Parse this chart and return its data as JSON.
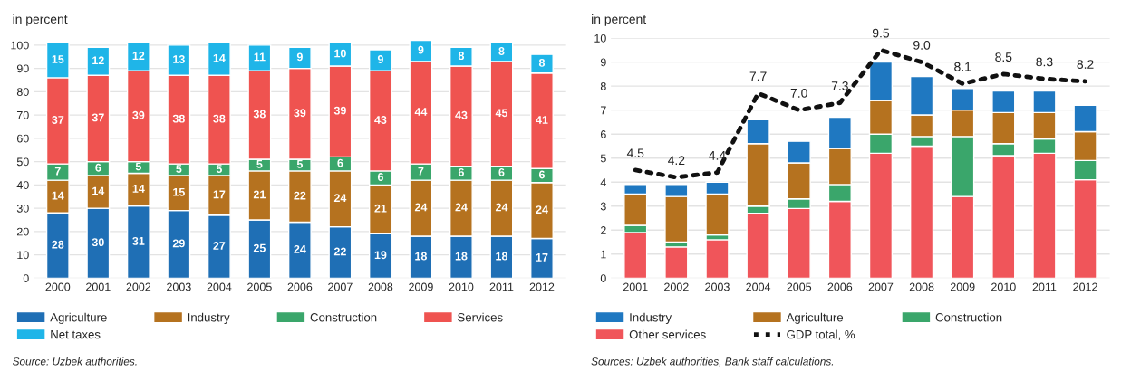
{
  "chart_data": [
    {
      "type": "bar",
      "stacked": true,
      "ylabel": "in percent",
      "categories": [
        "2000",
        "2001",
        "2002",
        "2003",
        "2004",
        "2005",
        "2006",
        "2007",
        "2008",
        "2009",
        "2010",
        "2011",
        "2012"
      ],
      "series": [
        {
          "name": "Agriculture",
          "color": "#1f6fb5",
          "values": [
            28,
            30,
            31,
            29,
            27,
            25,
            24,
            22,
            19,
            18,
            18,
            18,
            17
          ]
        },
        {
          "name": "Industry",
          "color": "#b5721f",
          "values": [
            14,
            14,
            14,
            15,
            17,
            21,
            22,
            24,
            21,
            24,
            24,
            24,
            24
          ]
        },
        {
          "name": "Construction",
          "color": "#3aa66b",
          "values": [
            7,
            6,
            5,
            5,
            5,
            5,
            5,
            6,
            6,
            7,
            6,
            6,
            6
          ]
        },
        {
          "name": "Services",
          "color": "#ef5350",
          "values": [
            37,
            37,
            39,
            38,
            38,
            38,
            39,
            39,
            43,
            44,
            43,
            45,
            41
          ]
        },
        {
          "name": "Net taxes",
          "color": "#1fb5e8",
          "values": [
            15,
            12,
            12,
            13,
            14,
            11,
            9,
            10,
            9,
            9,
            8,
            8,
            8
          ]
        }
      ],
      "ylim": [
        0,
        103
      ],
      "yticks": [
        0,
        10,
        20,
        30,
        40,
        50,
        60,
        70,
        80,
        90,
        100
      ],
      "grid": "y",
      "legend": "bottom",
      "data_labels": true,
      "annotations": [
        "Source: Uzbek authorities."
      ]
    },
    {
      "type": "bar",
      "stacked": true,
      "ylabel": "in percent",
      "categories": [
        "2001",
        "2002",
        "2003",
        "2004",
        "2005",
        "2006",
        "2007",
        "2008",
        "2009",
        "2010",
        "2011",
        "2012"
      ],
      "series": [
        {
          "name": "Other services",
          "color": "#f0555a",
          "values": [
            1.9,
            1.3,
            1.6,
            2.7,
            2.9,
            3.2,
            5.2,
            5.5,
            3.4,
            5.1,
            5.2,
            4.1
          ]
        },
        {
          "name": "Construction",
          "color": "#3aa66b",
          "values": [
            0.3,
            0.2,
            0.2,
            0.3,
            0.4,
            0.7,
            0.8,
            0.4,
            2.5,
            0.5,
            0.6,
            0.8
          ]
        },
        {
          "name": "Agriculture",
          "color": "#b5721f",
          "values": [
            1.3,
            1.9,
            1.7,
            2.6,
            1.5,
            1.5,
            1.4,
            0.9,
            1.1,
            1.3,
            1.1,
            1.2
          ]
        },
        {
          "name": "Industry",
          "color": "#1f78c1",
          "values": [
            0.4,
            0.5,
            0.5,
            1.0,
            0.9,
            1.3,
            1.6,
            1.6,
            0.9,
            0.9,
            0.9,
            1.1
          ]
        },
        {
          "name": "GDP total, %",
          "type": "line",
          "color": "#111111",
          "line_style": "dotted",
          "value_labels": [
            "4.5",
            "4.2",
            "4.4",
            "7.7",
            "7.0",
            "7.3",
            "9.5",
            "9.0",
            "8.1",
            "8.5",
            "8.3",
            "8.2"
          ],
          "values": [
            4.5,
            4.2,
            4.4,
            7.7,
            7.0,
            7.3,
            9.5,
            9.0,
            8.1,
            8.5,
            8.3,
            8.2
          ]
        }
      ],
      "ylim": [
        0,
        10
      ],
      "yticks": [
        0,
        1,
        2,
        3,
        4,
        5,
        6,
        7,
        8,
        9,
        10
      ],
      "grid": "y",
      "legend": "bottom",
      "annotations": [
        "Sources: Uzbek authorities, Bank staff calculations."
      ]
    }
  ]
}
